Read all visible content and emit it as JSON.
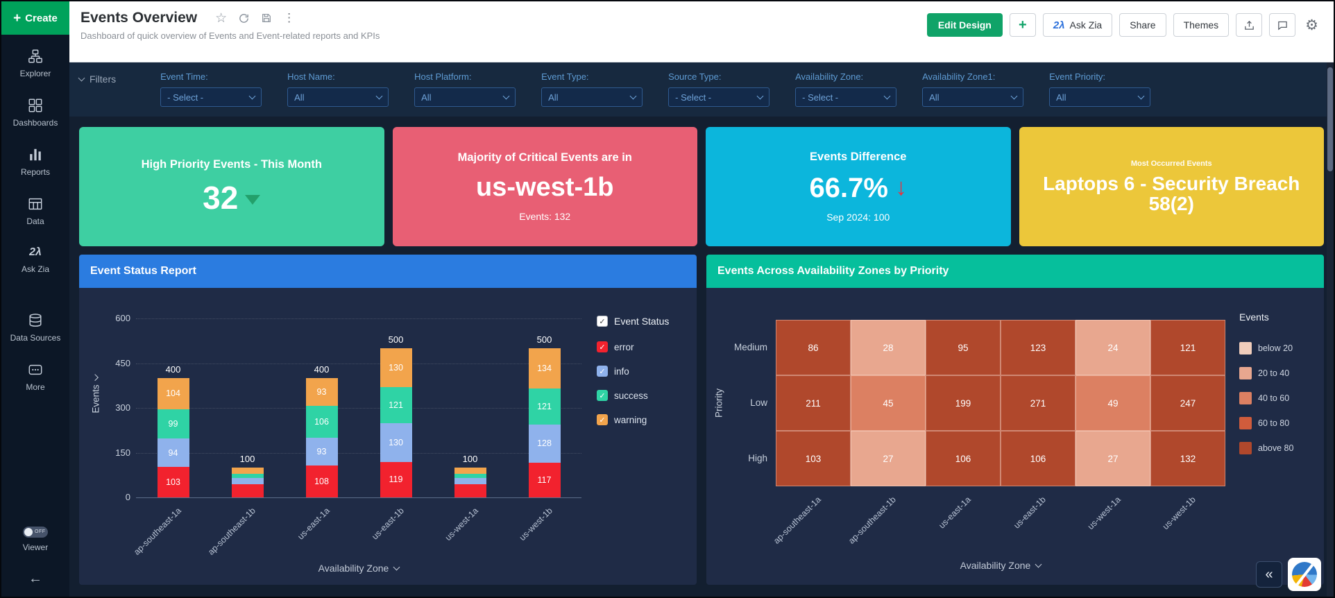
{
  "sidebar": {
    "create_label": "Create",
    "items": [
      {
        "id": "explorer",
        "label": "Explorer",
        "icon": "explorer-icon"
      },
      {
        "id": "dashboards",
        "label": "Dashboards",
        "icon": "dashboards-icon"
      },
      {
        "id": "reports",
        "label": "Reports",
        "icon": "reports-icon"
      },
      {
        "id": "data",
        "label": "Data",
        "icon": "data-table-icon"
      },
      {
        "id": "ask-zia",
        "label": "Ask Zia",
        "icon": "zia-icon"
      },
      {
        "id": "data-sources",
        "label": "Data Sources",
        "icon": "data-sources-icon"
      },
      {
        "id": "more",
        "label": "More",
        "icon": "more-icon"
      }
    ],
    "viewer": {
      "label": "Viewer",
      "state": "OFF"
    },
    "collapse_icon": "collapse-left-icon"
  },
  "header": {
    "title": "Events Overview",
    "subtitle": "Dashboard of quick overview of Events and Event-related reports and KPIs",
    "title_icons": [
      "star-icon",
      "refresh-icon",
      "save-icon",
      "kebab-menu-icon"
    ],
    "actions": {
      "edit_design": "Edit Design",
      "add": "+",
      "ask_zia": "Ask Zia",
      "share": "Share",
      "themes": "Themes"
    },
    "action_icons": [
      "export-icon",
      "comment-icon",
      "settings-gear-icon"
    ]
  },
  "filters": {
    "label": "Filters",
    "items": [
      {
        "label": "Event Time:",
        "value": "- Select -"
      },
      {
        "label": "Host Name:",
        "value": "All"
      },
      {
        "label": "Host Platform:",
        "value": "All"
      },
      {
        "label": "Event Type:",
        "value": "All"
      },
      {
        "label": "Source Type:",
        "value": "- Select -"
      },
      {
        "label": "Availability Zone:",
        "value": "- Select -"
      },
      {
        "label": "Availability Zone1:",
        "value": "All"
      },
      {
        "label": "Event Priority:",
        "value": "All"
      }
    ]
  },
  "kpis": [
    {
      "title": "High Priority Events - This Month",
      "value": "32",
      "trend": "down-green",
      "bg": "#3ecfa2"
    },
    {
      "title": "Majority of Critical Events are in",
      "value": "us-west-1b",
      "sub": "Events: 132",
      "bg": "#e85f74"
    },
    {
      "title": "Events Difference",
      "value": "66.7%",
      "trend": "down-red",
      "sub": "Sep 2024: 100",
      "bg": "#0cb6dc"
    },
    {
      "title": "Most Occurred Events",
      "value": "Laptops 6 - Security Breach 58(2)",
      "small_title": true,
      "bg": "#ecc73a"
    }
  ],
  "chart_data": [
    {
      "type": "bar",
      "stacked": true,
      "title": "Event Status Report",
      "categories": [
        "ap-southeast-1a",
        "ap-southeast-1b",
        "us-east-1a",
        "us-east-1b",
        "us-west-1a",
        "us-west-1b"
      ],
      "series": [
        {
          "name": "error",
          "color": "#f2222e",
          "values": [
            103,
            45,
            108,
            119,
            45,
            117
          ]
        },
        {
          "name": "info",
          "color": "#8fb2ec",
          "values": [
            94,
            20,
            93,
            130,
            20,
            128
          ]
        },
        {
          "name": "success",
          "color": "#2fd3a5",
          "values": [
            99,
            15,
            106,
            121,
            15,
            121
          ]
        },
        {
          "name": "warning",
          "color": "#f2a44c",
          "values": [
            104,
            20,
            93,
            130,
            20,
            134
          ]
        }
      ],
      "totals": [
        400,
        100,
        400,
        500,
        100,
        500
      ],
      "segment_labels_visible": [
        true,
        false,
        true,
        true,
        false,
        true
      ],
      "legend_title": "Event Status",
      "xlabel": "Availability Zone",
      "ylabel": "Events",
      "yticks": [
        0,
        150,
        300,
        450,
        600
      ],
      "ylim": [
        0,
        600
      ],
      "grid": true,
      "legend_position": "right"
    },
    {
      "type": "heatmap",
      "title": "Events Across Availability Zones by Priority",
      "rows": [
        "Medium",
        "Low",
        "High"
      ],
      "columns": [
        "ap-southeast-1a",
        "ap-southeast-1b",
        "us-east-1a",
        "us-east-1b",
        "us-west-1a",
        "us-west-1b"
      ],
      "values": [
        [
          86,
          28,
          95,
          123,
          24,
          121
        ],
        [
          211,
          45,
          199,
          271,
          49,
          247
        ],
        [
          103,
          27,
          106,
          106,
          27,
          132
        ]
      ],
      "xlabel": "Availability Zone",
      "ylabel": "Priority",
      "legend_title": "Events",
      "legend": [
        {
          "label": "below 20",
          "color": "#f0cdbb"
        },
        {
          "label": "20 to 40",
          "color": "#e8a78f"
        },
        {
          "label": "40 to 60",
          "color": "#dc8062"
        },
        {
          "label": "60 to 80",
          "color": "#d05c3c"
        },
        {
          "label": "above 80",
          "color": "#b0482c"
        }
      ],
      "legend_position": "right"
    }
  ],
  "corner": {
    "collapse_icon": "chevrons-left-icon",
    "logo": "zoho-analytics-logo"
  }
}
